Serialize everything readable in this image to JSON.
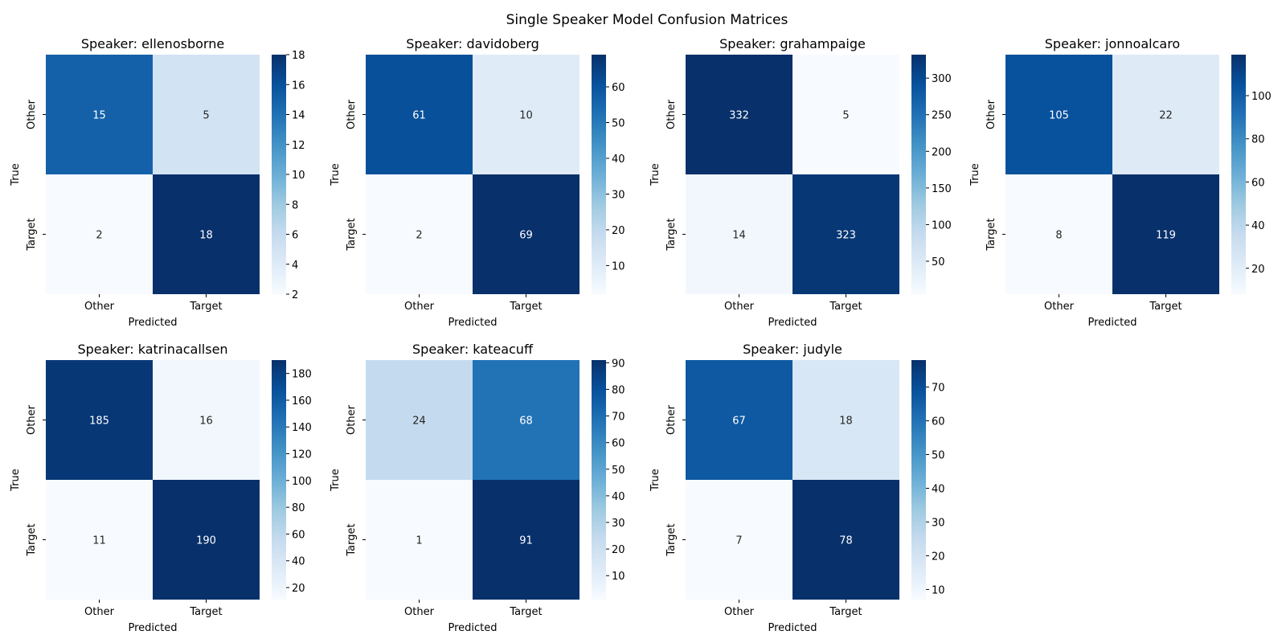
{
  "figure_title": "Single Speaker Model Confusion Matrices",
  "chart_data": [
    {
      "type": "heatmap",
      "title": "Speaker: ellenosborne",
      "xlabel": "Predicted",
      "ylabel": "True",
      "x_categories": [
        "Other",
        "Target"
      ],
      "y_categories": [
        "Other",
        "Target"
      ],
      "values": [
        [
          15,
          5
        ],
        [
          2,
          18
        ]
      ],
      "colorbar": {
        "min": 2,
        "max": 18,
        "ticks": [
          "2",
          "4",
          "6",
          "8",
          "10",
          "12",
          "14",
          "16",
          "18"
        ]
      },
      "colormap": "Blues"
    },
    {
      "type": "heatmap",
      "title": "Speaker: davidoberg",
      "xlabel": "Predicted",
      "ylabel": "True",
      "x_categories": [
        "Other",
        "Target"
      ],
      "y_categories": [
        "Other",
        "Target"
      ],
      "values": [
        [
          61,
          10
        ],
        [
          2,
          69
        ]
      ],
      "colorbar": {
        "min": 2,
        "max": 69,
        "ticks": [
          "10",
          "20",
          "30",
          "40",
          "50",
          "60"
        ]
      },
      "colormap": "Blues"
    },
    {
      "type": "heatmap",
      "title": "Speaker: grahampaige",
      "xlabel": "Predicted",
      "ylabel": "True",
      "x_categories": [
        "Other",
        "Target"
      ],
      "y_categories": [
        "Other",
        "Target"
      ],
      "values": [
        [
          332,
          5
        ],
        [
          14,
          323
        ]
      ],
      "colorbar": {
        "min": 5,
        "max": 332,
        "ticks": [
          "50",
          "100",
          "150",
          "200",
          "250",
          "300"
        ]
      },
      "colormap": "Blues"
    },
    {
      "type": "heatmap",
      "title": "Speaker: jonnoalcaro",
      "xlabel": "Predicted",
      "ylabel": "True",
      "x_categories": [
        "Other",
        "Target"
      ],
      "y_categories": [
        "Other",
        "Target"
      ],
      "values": [
        [
          105,
          22
        ],
        [
          8,
          119
        ]
      ],
      "colorbar": {
        "min": 8,
        "max": 119,
        "ticks": [
          "20",
          "40",
          "60",
          "80",
          "100"
        ]
      },
      "colormap": "Blues"
    },
    {
      "type": "heatmap",
      "title": "Speaker: katrinacallsen",
      "xlabel": "Predicted",
      "ylabel": "True",
      "x_categories": [
        "Other",
        "Target"
      ],
      "y_categories": [
        "Other",
        "Target"
      ],
      "values": [
        [
          185,
          16
        ],
        [
          11,
          190
        ]
      ],
      "colorbar": {
        "min": 11,
        "max": 190,
        "ticks": [
          "20",
          "40",
          "60",
          "80",
          "100",
          "120",
          "140",
          "160",
          "180"
        ]
      },
      "colormap": "Blues"
    },
    {
      "type": "heatmap",
      "title": "Speaker: kateacuff",
      "xlabel": "Predicted",
      "ylabel": "True",
      "x_categories": [
        "Other",
        "Target"
      ],
      "y_categories": [
        "Other",
        "Target"
      ],
      "values": [
        [
          24,
          68
        ],
        [
          1,
          91
        ]
      ],
      "colorbar": {
        "min": 1,
        "max": 91,
        "ticks": [
          "10",
          "20",
          "30",
          "40",
          "50",
          "60",
          "70",
          "80",
          "90"
        ]
      },
      "colormap": "Blues"
    },
    {
      "type": "heatmap",
      "title": "Speaker: judyle",
      "xlabel": "Predicted",
      "ylabel": "True",
      "x_categories": [
        "Other",
        "Target"
      ],
      "y_categories": [
        "Other",
        "Target"
      ],
      "values": [
        [
          67,
          18
        ],
        [
          7,
          78
        ]
      ],
      "colorbar": {
        "min": 7,
        "max": 78,
        "ticks": [
          "10",
          "20",
          "30",
          "40",
          "50",
          "60",
          "70"
        ]
      },
      "colormap": "Blues"
    }
  ]
}
